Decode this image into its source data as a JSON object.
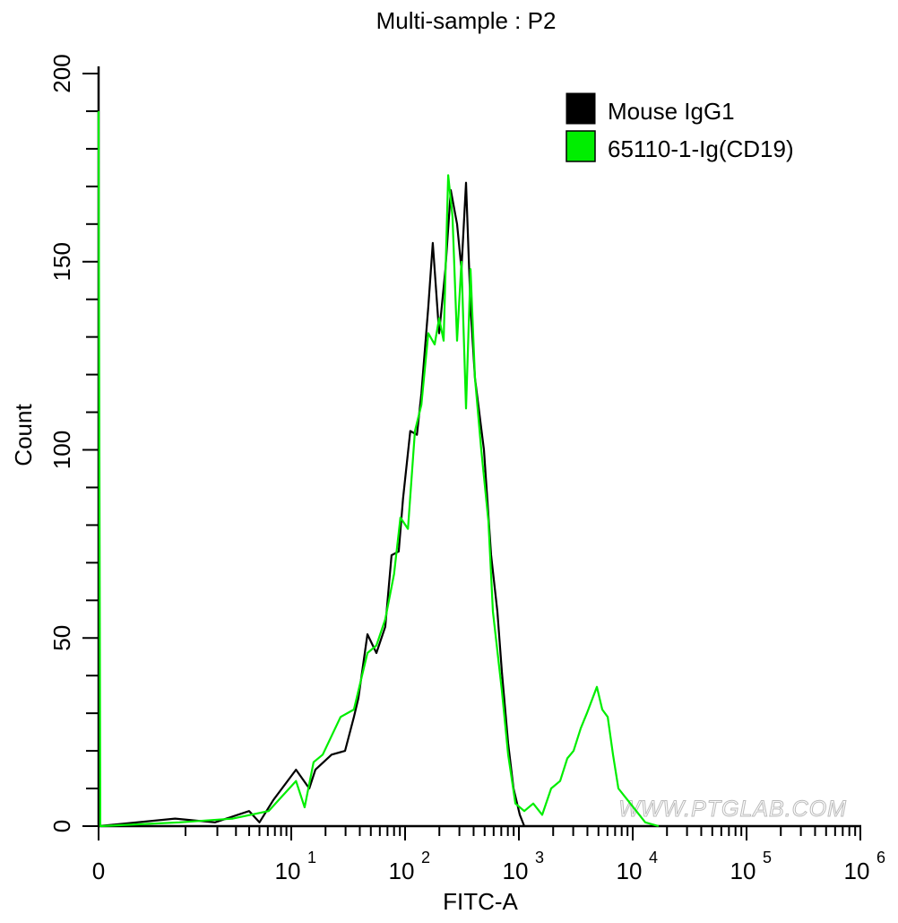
{
  "chart_data": {
    "type": "line",
    "title": "Multi-sample : P2",
    "xlabel": "FITC-A",
    "ylabel": "Count",
    "x_scale": "biexponential (log above 1)",
    "xlim": [
      0,
      1000000
    ],
    "ylim": [
      0,
      200
    ],
    "x_ticks": [
      {
        "label": "0"
      },
      {
        "base": "10",
        "exp": "1"
      },
      {
        "base": "10",
        "exp": "2"
      },
      {
        "base": "10",
        "exp": "3"
      },
      {
        "base": "10",
        "exp": "4"
      },
      {
        "base": "10",
        "exp": "5"
      },
      {
        "base": "10",
        "exp": "6"
      }
    ],
    "y_ticks": [
      "0",
      "50",
      "100",
      "150",
      "200"
    ],
    "grid": false,
    "legend_position": "top-right",
    "watermark": "WWW.PTGLAB.COM",
    "series": [
      {
        "name": "Mouse IgG1",
        "color": "#000000",
        "x": [
          0,
          0.88,
          1.9,
          4.0,
          5.0,
          6.8,
          11,
          14.4,
          16.3,
          22.6,
          29.7,
          35.5,
          38.9,
          46.7,
          56,
          67,
          76,
          88,
          96,
          111,
          127,
          139,
          160,
          175,
          199,
          226,
          252,
          286,
          313,
          343,
          376,
          411,
          493,
          570,
          647,
          708,
          805,
          897,
          1019,
          1114
        ],
        "y": [
          0,
          2,
          1,
          4,
          1,
          7,
          15,
          10,
          15,
          19,
          20,
          29,
          34,
          51,
          46,
          53,
          72,
          73,
          87,
          105,
          104,
          115,
          138,
          155,
          131,
          148,
          169,
          160,
          148,
          171,
          138,
          119,
          100,
          72,
          57,
          41,
          22,
          10,
          3,
          0
        ]
      },
      {
        "name": "65110-1-Ig(CD19)",
        "color": "#00ee00",
        "x": [
          0,
          0.02,
          0.93,
          2.8,
          6.1,
          11,
          13.1,
          15.7,
          18.9,
          27.1,
          35.5,
          46.7,
          56,
          67,
          80,
          91,
          106,
          122,
          139,
          160,
          182,
          199,
          218,
          239,
          261,
          286,
          313,
          343,
          376,
          411,
          467,
          540,
          591,
          708,
          805,
          931,
          1114,
          1337,
          1603,
          1920,
          2302,
          2661,
          3020,
          3491,
          3963,
          4842,
          5400,
          6025,
          6714,
          7486,
          8974,
          10750,
          12890,
          16900
        ],
        "y": [
          190,
          0,
          1,
          2,
          4,
          12,
          5,
          17,
          19,
          29,
          31,
          46,
          48,
          55,
          67,
          82,
          79,
          105,
          112,
          131,
          128,
          135,
          129,
          173,
          162,
          129,
          150,
          111,
          148,
          119,
          100,
          81,
          57,
          36,
          19,
          6,
          4,
          6,
          3,
          10,
          12,
          18,
          20,
          26,
          30,
          37,
          31,
          29,
          19,
          10,
          7,
          4,
          1,
          0
        ]
      }
    ]
  }
}
